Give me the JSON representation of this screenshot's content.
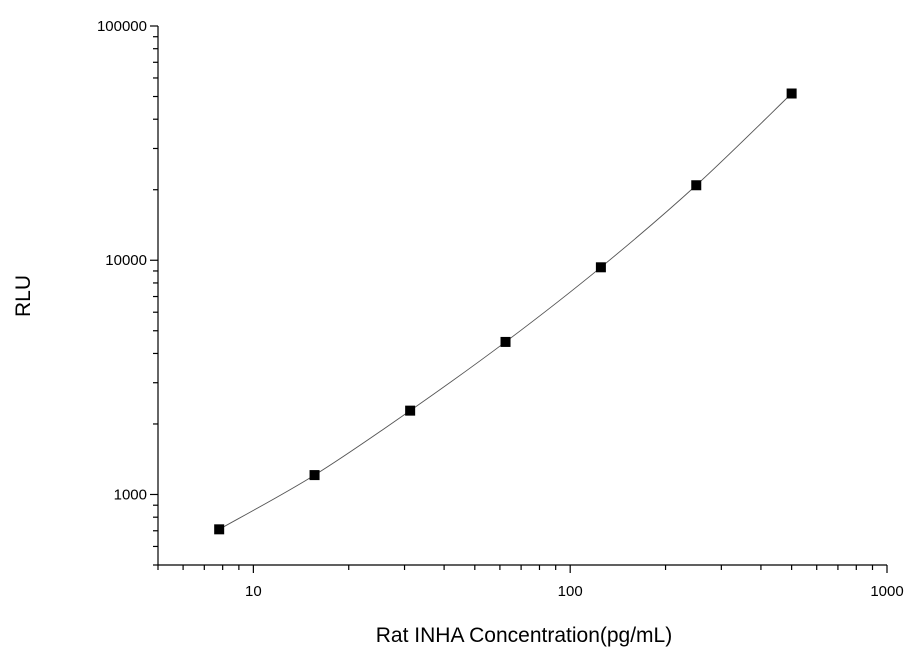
{
  "chart_data": {
    "type": "scatter",
    "xlabel": "Rat INHA Concentration(pg/mL)",
    "ylabel": "RLU",
    "x_scale": "log",
    "y_scale": "log",
    "xlim": [
      5,
      1000
    ],
    "ylim": [
      500,
      100000
    ],
    "x_ticks": [
      {
        "value": 10,
        "label": "10"
      },
      {
        "value": 100,
        "label": "100"
      },
      {
        "value": 1000,
        "label": "1000"
      }
    ],
    "y_ticks": [
      {
        "value": 1000,
        "label": "1000"
      },
      {
        "value": 10000,
        "label": "10000"
      },
      {
        "value": 100000,
        "label": "100000"
      }
    ],
    "grid": false,
    "marker": "square",
    "marker_color": "#000000",
    "line_color": "#555555",
    "series": [
      {
        "x": [
          7.8,
          15.6,
          31.25,
          62.5,
          125,
          250,
          500
        ],
        "y": [
          710,
          1210,
          2280,
          4480,
          9330,
          20900,
          51500
        ]
      }
    ]
  }
}
